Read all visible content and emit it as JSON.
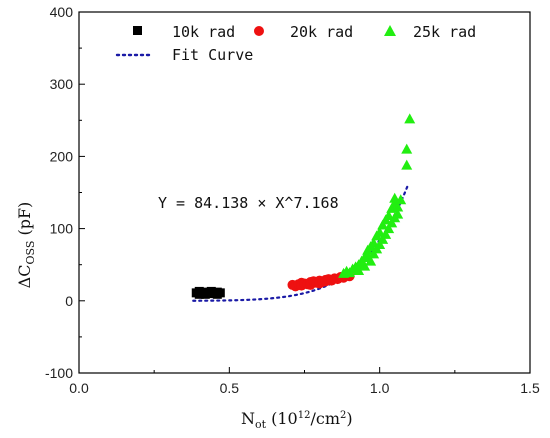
{
  "chart_data": {
    "type": "scatter",
    "xlabel": {
      "main": "N",
      "sub": "ot",
      "unit_open": " (10",
      "unit_sup": "12",
      "unit_close": "/cm",
      "unit_sup2": "2",
      "unit_end": ")"
    },
    "ylabel": {
      "prefix": "ΔC",
      "sub": "OSS",
      "unit": " (pF)"
    },
    "xlim": [
      0.0,
      1.5
    ],
    "ylim": [
      -100,
      400
    ],
    "xticks": [
      0.0,
      0.5,
      1.0,
      1.5
    ],
    "xtick_labels": [
      "0.0",
      "0.5",
      "1.0",
      "1.5"
    ],
    "yticks": [
      -100,
      0,
      100,
      200,
      300,
      400
    ],
    "ytick_labels": [
      "-100",
      "0",
      "100",
      "200",
      "300",
      "400"
    ],
    "grid": false,
    "legend_placement": "top",
    "annotation": "Y = 84.138 × X^7.168",
    "series": [
      {
        "name": "10k rad",
        "marker": "square",
        "color": "#000000",
        "points": [
          [
            0.39,
            11
          ],
          [
            0.4,
            9
          ],
          [
            0.4,
            13
          ],
          [
            0.41,
            10
          ],
          [
            0.42,
            12
          ],
          [
            0.42,
            9
          ],
          [
            0.43,
            11
          ],
          [
            0.44,
            10
          ],
          [
            0.44,
            13
          ],
          [
            0.45,
            11
          ],
          [
            0.46,
            9
          ],
          [
            0.46,
            12
          ],
          [
            0.47,
            11
          ]
        ]
      },
      {
        "name": "20k rad",
        "marker": "circle",
        "color": "#ee1111",
        "points": [
          [
            0.71,
            22
          ],
          [
            0.72,
            20
          ],
          [
            0.73,
            23
          ],
          [
            0.74,
            25
          ],
          [
            0.74,
            21
          ],
          [
            0.75,
            24
          ],
          [
            0.76,
            23
          ],
          [
            0.77,
            26
          ],
          [
            0.77,
            22
          ],
          [
            0.78,
            27
          ],
          [
            0.79,
            25
          ],
          [
            0.8,
            28
          ],
          [
            0.8,
            24
          ],
          [
            0.81,
            26
          ],
          [
            0.82,
            29
          ],
          [
            0.82,
            27
          ],
          [
            0.83,
            30
          ],
          [
            0.84,
            28
          ],
          [
            0.85,
            31
          ],
          [
            0.86,
            30
          ],
          [
            0.87,
            33
          ],
          [
            0.88,
            32
          ],
          [
            0.89,
            35
          ],
          [
            0.9,
            34
          ]
        ]
      },
      {
        "name": "25k rad",
        "marker": "triangle",
        "color": "#22ee11",
        "points": [
          [
            0.88,
            38
          ],
          [
            0.89,
            41
          ],
          [
            0.9,
            39
          ],
          [
            0.91,
            44
          ],
          [
            0.92,
            47
          ],
          [
            0.93,
            50
          ],
          [
            0.93,
            42
          ],
          [
            0.94,
            55
          ],
          [
            0.95,
            60
          ],
          [
            0.95,
            48
          ],
          [
            0.96,
            70
          ],
          [
            0.96,
            62
          ],
          [
            0.97,
            75
          ],
          [
            0.97,
            55
          ],
          [
            0.98,
            65
          ],
          [
            0.98,
            80
          ],
          [
            0.99,
            72
          ],
          [
            0.99,
            90
          ],
          [
            1.0,
            78
          ],
          [
            1.0,
            95
          ],
          [
            1.01,
            85
          ],
          [
            1.01,
            105
          ],
          [
            1.02,
            92
          ],
          [
            1.02,
            112
          ],
          [
            1.03,
            100
          ],
          [
            1.03,
            118
          ],
          [
            1.04,
            108
          ],
          [
            1.04,
            128
          ],
          [
            1.05,
            115
          ],
          [
            1.05,
            135
          ],
          [
            1.05,
            142
          ],
          [
            1.06,
            120
          ],
          [
            1.06,
            130
          ],
          [
            1.07,
            140
          ],
          [
            1.09,
            188
          ],
          [
            1.09,
            210
          ],
          [
            1.1,
            252
          ]
        ]
      }
    ],
    "fit_curve": {
      "name": "Fit Curve",
      "color": "#1a1aa6",
      "style": "dotted",
      "a": 84.138,
      "b": 7.168,
      "x_range": [
        0.38,
        1.095
      ]
    }
  }
}
